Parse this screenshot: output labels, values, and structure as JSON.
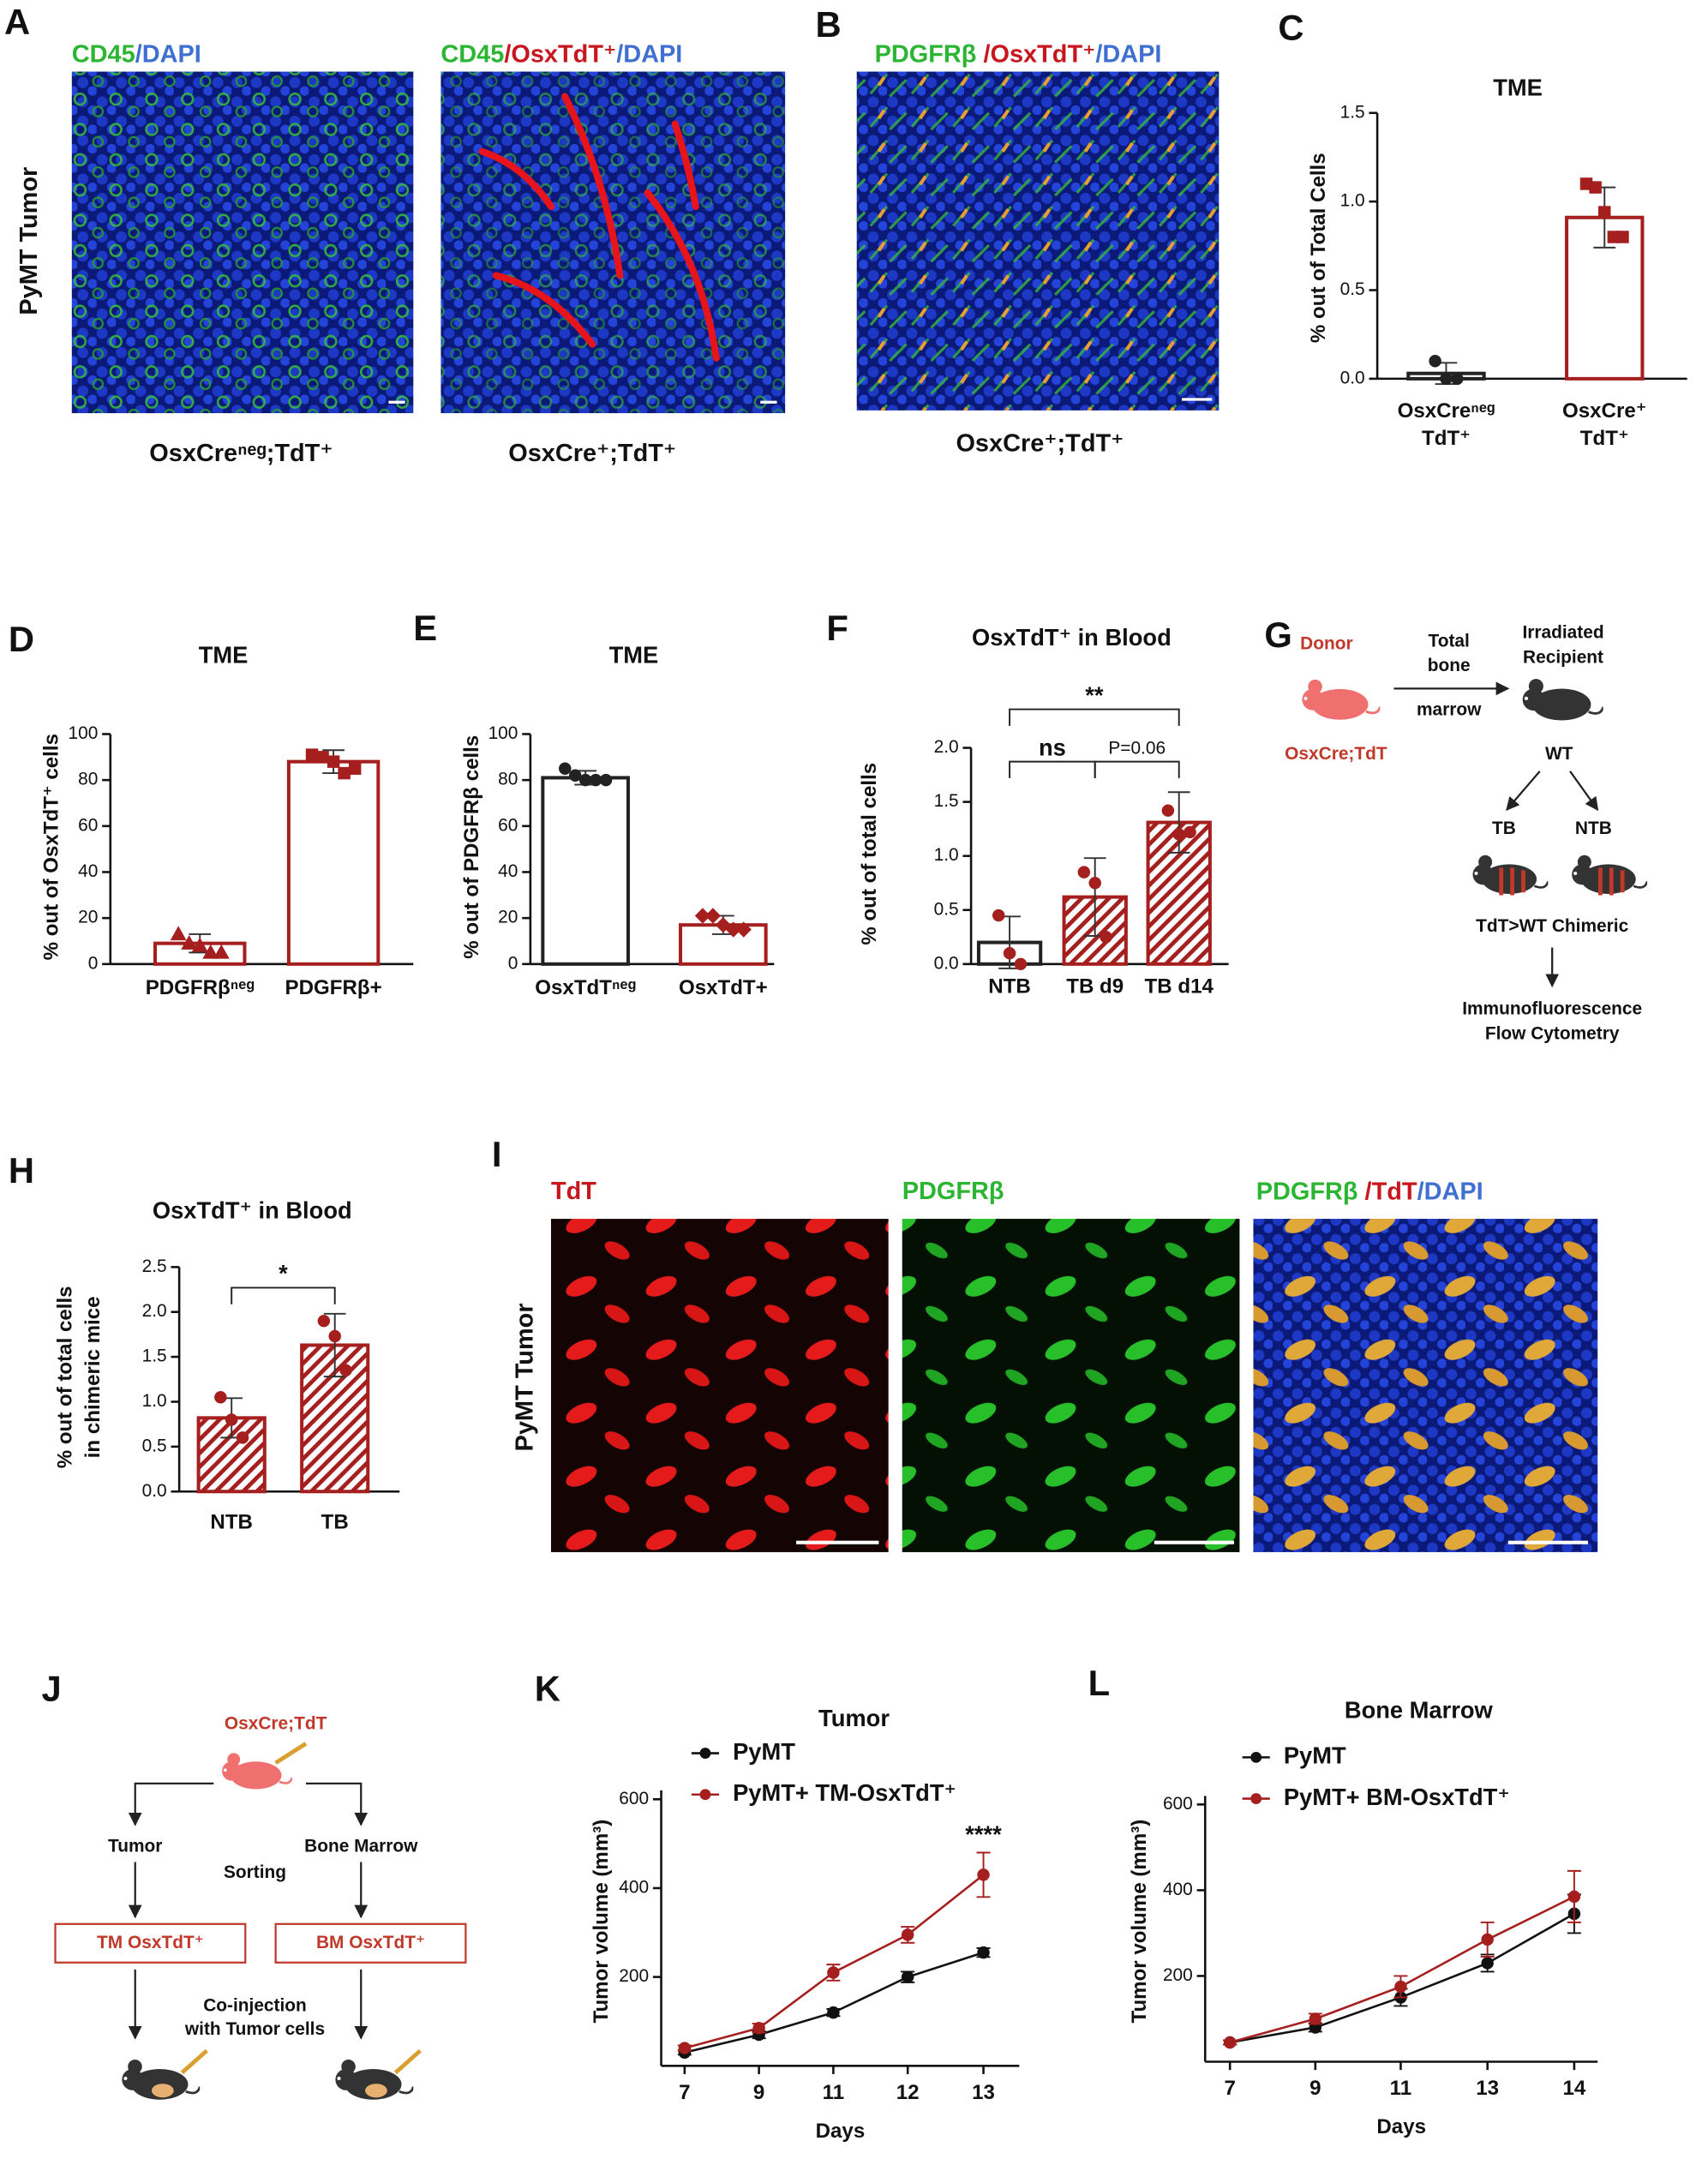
{
  "panels": {
    "A": {
      "letter": "A",
      "stain_left": [
        "CD45",
        "/DAPI"
      ],
      "stain_right": [
        "CD45",
        "/",
        "OsxTdT⁺",
        "/DAPI"
      ],
      "row_label": "PyMT Tumor",
      "caption_left": "OsxCreⁿᵉᵍ;TdT⁺",
      "caption_right": "OsxCre⁺;TdT⁺"
    },
    "B": {
      "letter": "B",
      "stain": [
        "PDGFRβ",
        " /",
        "OsxTdT⁺",
        "/DAPI"
      ],
      "caption": "OsxCre⁺;TdT⁺"
    },
    "G": {
      "letter": "G",
      "donor": "Donor",
      "donor_strain": "OsxCre;TdT",
      "transfer": [
        "Total",
        "bone",
        "marrow"
      ],
      "recipient": [
        "Irradiated",
        "Recipient"
      ],
      "recipient_strain": "WT",
      "groups": [
        "TB",
        "NTB"
      ],
      "chimera": "TdT>WT Chimeric",
      "readouts": [
        "Immunofluorescence",
        "Flow Cytometry"
      ]
    },
    "I": {
      "letter": "I",
      "channels": [
        "TdT",
        "PDGFRβ"
      ],
      "merge": [
        "PDGFRβ",
        " /",
        "TdT",
        "/DAPI"
      ],
      "row_label": "PyMT Tumor"
    },
    "J": {
      "letter": "J",
      "strain": "OsxCre;TdT",
      "sources": [
        "Tumor",
        "Bone Marrow"
      ],
      "step": "Sorting",
      "populations": [
        "TM OsxTdT⁺",
        "BM OsxTdT⁺"
      ],
      "injection": [
        "Co-injection",
        "with Tumor cells"
      ]
    }
  },
  "chart_data": [
    {
      "panel": "C",
      "type": "bar",
      "title": "TME",
      "ylabel": "% out of Total Cells",
      "categories": [
        [
          "OsxCreⁿᵉᵍ",
          "TdT⁺"
        ],
        [
          "OsxCre⁺",
          "TdT⁺"
        ]
      ],
      "values": [
        0.03,
        0.91
      ],
      "errors": [
        0.06,
        0.17
      ],
      "points": [
        [
          0.1,
          0.0,
          0.0
        ],
        [
          1.1,
          1.08,
          0.94,
          0.8,
          0.8
        ]
      ],
      "colors": [
        "#222222",
        "#a51f1f"
      ],
      "markers": [
        "circle",
        "square"
      ],
      "hatch": [
        false,
        false
      ],
      "ylim": [
        0,
        1.5
      ],
      "yticks": [
        {
          "value": 0,
          "label": "0.0"
        },
        {
          "value": 0.5,
          "label": "0.5"
        },
        {
          "value": 1,
          "label": "1.0"
        },
        {
          "value": 1.5,
          "label": "1.5"
        }
      ]
    },
    {
      "panel": "D",
      "type": "bar",
      "title": "TME",
      "ylabel": "% out of OsxTdT⁺ cells",
      "categories": [
        "PDGFRβⁿᵉᵍ",
        "PDGFRβ+"
      ],
      "values": [
        9,
        88
      ],
      "errors": [
        4,
        5
      ],
      "points": [
        [
          13,
          9,
          8,
          5,
          5
        ],
        [
          91,
          90,
          88,
          83,
          85
        ]
      ],
      "colors": [
        "#a51f1f",
        "#a51f1f"
      ],
      "markers": [
        "triangle",
        "square"
      ],
      "hatch": [
        false,
        false
      ],
      "ylim": [
        0,
        100
      ],
      "yticks": [
        0,
        20,
        40,
        60,
        80,
        100
      ]
    },
    {
      "panel": "E",
      "type": "bar",
      "title": "TME",
      "ylabel": "% out of PDGFRβ cells",
      "categories": [
        "OsxTdTⁿᵉᵍ",
        "OsxTdT+"
      ],
      "values": [
        81,
        17
      ],
      "errors": [
        3,
        4
      ],
      "points": [
        [
          85,
          82,
          80,
          80,
          80
        ],
        [
          21,
          21,
          17,
          15,
          15
        ]
      ],
      "colors": [
        "#222222",
        "#a51f1f"
      ],
      "markers": [
        "circle",
        "diamond"
      ],
      "hatch": [
        false,
        false
      ],
      "ylim": [
        0,
        100
      ],
      "yticks": [
        0,
        20,
        40,
        60,
        80,
        100
      ]
    },
    {
      "panel": "F",
      "type": "bar",
      "title": "OsxTdT⁺ in Blood",
      "ylabel": "% out of total cells",
      "categories": [
        "NTB",
        "TB d9",
        "TB d14"
      ],
      "values": [
        0.2,
        0.62,
        1.31
      ],
      "errors": [
        0.24,
        0.36,
        0.28
      ],
      "points": [
        [
          0.45,
          0.1,
          0.0
        ],
        [
          0.85,
          0.75,
          0.25
        ],
        [
          1.42,
          1.2,
          1.22
        ]
      ],
      "colors": [
        "#222222",
        "#a51f1f",
        "#a51f1f"
      ],
      "point_colors": [
        "#a51f1f",
        "#a51f1f",
        "#a51f1f"
      ],
      "markers": [
        "circle",
        "circle",
        "circle"
      ],
      "hatch": [
        false,
        true,
        true
      ],
      "ylim": [
        0,
        2
      ],
      "yticks": [
        {
          "value": 0,
          "label": "0.0"
        },
        {
          "value": 0.5,
          "label": "0.5"
        },
        {
          "value": 1,
          "label": "1.0"
        },
        {
          "value": 1.5,
          "label": "1.5"
        },
        {
          "value": 2,
          "label": "2.0"
        }
      ],
      "comparisons": [
        {
          "between": [
            "NTB",
            "TB d14"
          ],
          "label": "**"
        },
        {
          "between": [
            "NTB",
            "TB d9"
          ],
          "label": "ns"
        },
        {
          "between": [
            "TB d9",
            "TB d14"
          ],
          "label": "P=0.06"
        }
      ]
    },
    {
      "panel": "H",
      "type": "bar",
      "title": "OsxTdT⁺ in Blood",
      "ylabel": [
        "% out of total cells",
        "in chimeric mice"
      ],
      "categories": [
        "NTB",
        "TB"
      ],
      "values": [
        0.82,
        1.63
      ],
      "errors": [
        0.22,
        0.35
      ],
      "points": [
        [
          1.05,
          0.8,
          0.6
        ],
        [
          1.9,
          1.73,
          1.35
        ]
      ],
      "colors": [
        "#a51f1f",
        "#a51f1f"
      ],
      "markers": [
        "circle",
        "circle"
      ],
      "hatch": [
        true,
        true
      ],
      "ylim": [
        0,
        2.5
      ],
      "yticks": [
        {
          "value": 0,
          "label": "0.0"
        },
        {
          "value": 0.5,
          "label": "0.5"
        },
        {
          "value": 1,
          "label": "1.0"
        },
        {
          "value": 1.5,
          "label": "1.5"
        },
        {
          "value": 2,
          "label": "2.0"
        },
        {
          "value": 2.5,
          "label": "2.5"
        }
      ],
      "comparisons": [
        {
          "between": [
            "NTB",
            "TB"
          ],
          "label": "*"
        }
      ]
    },
    {
      "panel": "K",
      "type": "line",
      "title": "Tumor",
      "xlabel": "Days",
      "ylabel": "Tumor volume (mm³)",
      "categories": [
        7,
        9,
        11,
        12,
        13
      ],
      "ylim": [
        0,
        620
      ],
      "yticks": [
        200,
        400,
        600
      ],
      "series": [
        {
          "name": "PyMT",
          "color": "#111111",
          "values": [
            30,
            70,
            120,
            200,
            255
          ],
          "errors": [
            5,
            8,
            8,
            12,
            10
          ]
        },
        {
          "name": "PyMT+ TM-OsxTdT⁺",
          "color": "#a51f1f",
          "values": [
            40,
            85,
            210,
            295,
            430
          ],
          "errors": [
            6,
            10,
            18,
            18,
            50
          ]
        }
      ],
      "annotations": [
        {
          "label": "****",
          "at": 13
        }
      ]
    },
    {
      "panel": "L",
      "type": "line",
      "title": "Bone Marrow",
      "xlabel": "Days",
      "ylabel": "Tumor volume (mm³)",
      "categories": [
        7,
        9,
        11,
        13,
        14
      ],
      "ylim": [
        0,
        620
      ],
      "yticks": [
        200,
        400,
        600
      ],
      "series": [
        {
          "name": "PyMT",
          "color": "#111111",
          "values": [
            45,
            80,
            150,
            230,
            345
          ],
          "errors": [
            5,
            10,
            20,
            20,
            45
          ]
        },
        {
          "name": "PyMT+ BM-OsxTdT⁺",
          "color": "#a51f1f",
          "values": [
            45,
            100,
            175,
            285,
            385
          ],
          "errors": [
            5,
            12,
            25,
            40,
            60
          ]
        }
      ]
    }
  ]
}
